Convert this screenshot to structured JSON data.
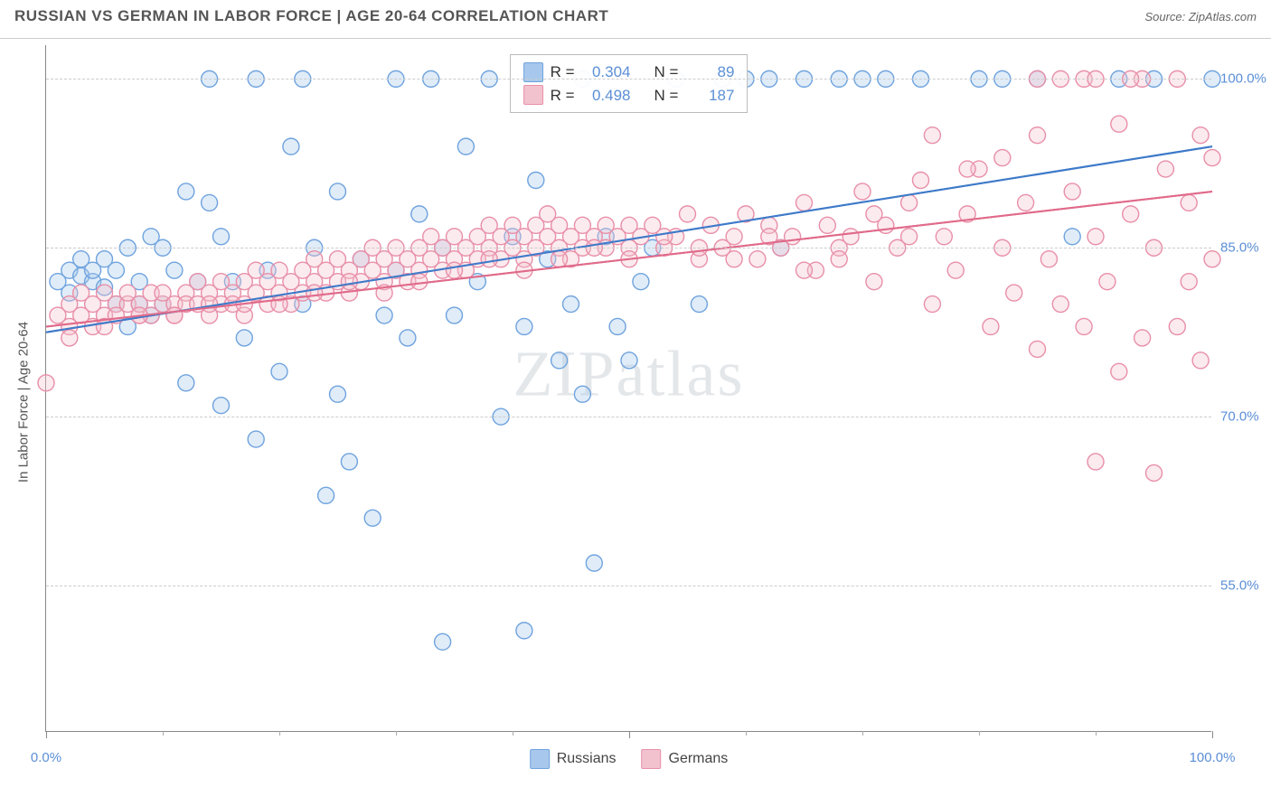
{
  "header": {
    "title": "RUSSIAN VS GERMAN IN LABOR FORCE | AGE 20-64 CORRELATION CHART",
    "source_prefix": "Source: ",
    "source": "ZipAtlas.com"
  },
  "chart": {
    "type": "scatter",
    "ylabel": "In Labor Force | Age 20-64",
    "watermark": "ZIPatlas",
    "background_color": "#ffffff",
    "grid_color": "#cccccc",
    "axis_color": "#888888",
    "label_color": "#5b8fd6",
    "xlim": [
      0,
      100
    ],
    "ylim": [
      42,
      103
    ],
    "x_ticks_major": [
      0,
      50,
      100
    ],
    "x_ticks_minor": [
      10,
      20,
      30,
      40,
      60,
      70,
      80,
      90
    ],
    "x_tick_labels": {
      "0": "0.0%",
      "100": "100.0%"
    },
    "y_gridlines": [
      55,
      70,
      85,
      100
    ],
    "y_tick_labels": {
      "55": "55.0%",
      "70": "70.0%",
      "85": "85.0%",
      "100": "100.0%"
    },
    "marker_radius": 9,
    "marker_fill_opacity": 0.35,
    "marker_stroke_width": 1.4,
    "line_width": 2,
    "series": [
      {
        "id": "russians",
        "name": "Russians",
        "color_fill": "#a7c8ec",
        "color_stroke": "#6fa3de",
        "line_color": "#3e7ac9",
        "stats": {
          "R": "0.304",
          "N": "89"
        },
        "trend": {
          "x1": 0,
          "y1": 77.5,
          "x2": 100,
          "y2": 94.0
        },
        "points": [
          [
            1,
            82
          ],
          [
            2,
            83
          ],
          [
            2,
            81
          ],
          [
            3,
            82.5
          ],
          [
            3,
            84
          ],
          [
            4,
            82
          ],
          [
            4,
            83
          ],
          [
            5,
            81.5
          ],
          [
            5,
            84
          ],
          [
            6,
            80
          ],
          [
            6,
            83
          ],
          [
            7,
            85
          ],
          [
            7,
            78
          ],
          [
            8,
            80
          ],
          [
            8,
            82
          ],
          [
            9,
            86
          ],
          [
            9,
            79
          ],
          [
            10,
            85
          ],
          [
            10,
            80
          ],
          [
            11,
            83
          ],
          [
            12,
            90
          ],
          [
            12,
            73
          ],
          [
            13,
            82
          ],
          [
            14,
            100
          ],
          [
            14,
            89
          ],
          [
            15,
            71
          ],
          [
            15,
            86
          ],
          [
            16,
            82
          ],
          [
            17,
            77
          ],
          [
            18,
            100
          ],
          [
            18,
            68
          ],
          [
            19,
            83
          ],
          [
            20,
            74
          ],
          [
            21,
            94
          ],
          [
            22,
            100
          ],
          [
            22,
            80
          ],
          [
            23,
            85
          ],
          [
            24,
            63
          ],
          [
            25,
            72
          ],
          [
            25,
            90
          ],
          [
            26,
            66
          ],
          [
            27,
            84
          ],
          [
            28,
            61
          ],
          [
            29,
            79
          ],
          [
            30,
            100
          ],
          [
            30,
            83
          ],
          [
            31,
            77
          ],
          [
            32,
            88
          ],
          [
            33,
            100
          ],
          [
            34,
            50
          ],
          [
            34,
            85
          ],
          [
            35,
            79
          ],
          [
            36,
            94
          ],
          [
            37,
            82
          ],
          [
            38,
            100
          ],
          [
            39,
            70
          ],
          [
            40,
            86
          ],
          [
            41,
            78
          ],
          [
            41,
            51
          ],
          [
            42,
            91
          ],
          [
            43,
            84
          ],
          [
            44,
            75
          ],
          [
            45,
            80
          ],
          [
            46,
            100
          ],
          [
            46,
            72
          ],
          [
            47,
            57
          ],
          [
            48,
            86
          ],
          [
            49,
            78
          ],
          [
            50,
            75
          ],
          [
            51,
            82
          ],
          [
            52,
            85
          ],
          [
            54,
            100
          ],
          [
            56,
            80
          ],
          [
            58,
            100
          ],
          [
            60,
            100
          ],
          [
            62,
            100
          ],
          [
            63,
            85
          ],
          [
            65,
            100
          ],
          [
            68,
            100
          ],
          [
            70,
            100
          ],
          [
            72,
            100
          ],
          [
            75,
            100
          ],
          [
            80,
            100
          ],
          [
            82,
            100
          ],
          [
            85,
            100
          ],
          [
            88,
            86
          ],
          [
            92,
            100
          ],
          [
            95,
            100
          ],
          [
            100,
            100
          ]
        ]
      },
      {
        "id": "germans",
        "name": "Germans",
        "color_fill": "#f3c2cf",
        "color_stroke": "#e88fa8",
        "line_color": "#e06a8a",
        "stats": {
          "R": "0.498",
          "N": "187"
        },
        "trend": {
          "x1": 0,
          "y1": 78.0,
          "x2": 100,
          "y2": 90.0
        },
        "points": [
          [
            1,
            79
          ],
          [
            2,
            78
          ],
          [
            2,
            80
          ],
          [
            3,
            79
          ],
          [
            3,
            81
          ],
          [
            4,
            80
          ],
          [
            4,
            78
          ],
          [
            5,
            79
          ],
          [
            5,
            81
          ],
          [
            6,
            80
          ],
          [
            6,
            79
          ],
          [
            7,
            80
          ],
          [
            7,
            81
          ],
          [
            8,
            79
          ],
          [
            8,
            80
          ],
          [
            9,
            81
          ],
          [
            9,
            79
          ],
          [
            10,
            80
          ],
          [
            10,
            81
          ],
          [
            11,
            80
          ],
          [
            11,
            79
          ],
          [
            12,
            81
          ],
          [
            12,
            80
          ],
          [
            13,
            80
          ],
          [
            13,
            82
          ],
          [
            14,
            81
          ],
          [
            14,
            79
          ],
          [
            15,
            80
          ],
          [
            15,
            82
          ],
          [
            16,
            81
          ],
          [
            16,
            80
          ],
          [
            17,
            82
          ],
          [
            17,
            79
          ],
          [
            18,
            81
          ],
          [
            18,
            83
          ],
          [
            19,
            80
          ],
          [
            19,
            82
          ],
          [
            20,
            81
          ],
          [
            20,
            83
          ],
          [
            21,
            82
          ],
          [
            21,
            80
          ],
          [
            22,
            83
          ],
          [
            22,
            81
          ],
          [
            23,
            82
          ],
          [
            23,
            84
          ],
          [
            24,
            81
          ],
          [
            24,
            83
          ],
          [
            25,
            82
          ],
          [
            25,
            84
          ],
          [
            26,
            83
          ],
          [
            26,
            81
          ],
          [
            27,
            84
          ],
          [
            27,
            82
          ],
          [
            28,
            83
          ],
          [
            28,
            85
          ],
          [
            29,
            82
          ],
          [
            29,
            84
          ],
          [
            30,
            83
          ],
          [
            30,
            85
          ],
          [
            31,
            84
          ],
          [
            31,
            82
          ],
          [
            32,
            85
          ],
          [
            32,
            83
          ],
          [
            33,
            84
          ],
          [
            33,
            86
          ],
          [
            34,
            83
          ],
          [
            34,
            85
          ],
          [
            35,
            84
          ],
          [
            35,
            86
          ],
          [
            36,
            85
          ],
          [
            36,
            83
          ],
          [
            37,
            86
          ],
          [
            37,
            84
          ],
          [
            38,
            85
          ],
          [
            38,
            87
          ],
          [
            39,
            84
          ],
          [
            39,
            86
          ],
          [
            40,
            85
          ],
          [
            40,
            87
          ],
          [
            41,
            86
          ],
          [
            41,
            84
          ],
          [
            42,
            87
          ],
          [
            42,
            85
          ],
          [
            43,
            86
          ],
          [
            43,
            88
          ],
          [
            44,
            85
          ],
          [
            44,
            87
          ],
          [
            45,
            86
          ],
          [
            45,
            84
          ],
          [
            46,
            87
          ],
          [
            46,
            85
          ],
          [
            47,
            86
          ],
          [
            48,
            87
          ],
          [
            48,
            85
          ],
          [
            49,
            86
          ],
          [
            50,
            87
          ],
          [
            50,
            85
          ],
          [
            51,
            86
          ],
          [
            52,
            87
          ],
          [
            53,
            85
          ],
          [
            54,
            86
          ],
          [
            55,
            88
          ],
          [
            56,
            84
          ],
          [
            57,
            87
          ],
          [
            58,
            85
          ],
          [
            59,
            86
          ],
          [
            60,
            88
          ],
          [
            61,
            84
          ],
          [
            62,
            87
          ],
          [
            63,
            85
          ],
          [
            64,
            86
          ],
          [
            65,
            89
          ],
          [
            66,
            83
          ],
          [
            67,
            87
          ],
          [
            68,
            85
          ],
          [
            69,
            86
          ],
          [
            70,
            90
          ],
          [
            71,
            82
          ],
          [
            72,
            87
          ],
          [
            73,
            85
          ],
          [
            74,
            89
          ],
          [
            75,
            91
          ],
          [
            76,
            80
          ],
          [
            77,
            86
          ],
          [
            78,
            83
          ],
          [
            79,
            88
          ],
          [
            80,
            92
          ],
          [
            81,
            78
          ],
          [
            82,
            85
          ],
          [
            83,
            81
          ],
          [
            84,
            89
          ],
          [
            85,
            95
          ],
          [
            85,
            76
          ],
          [
            86,
            84
          ],
          [
            87,
            80
          ],
          [
            88,
            90
          ],
          [
            89,
            100
          ],
          [
            89,
            78
          ],
          [
            90,
            86
          ],
          [
            90,
            66
          ],
          [
            91,
            82
          ],
          [
            92,
            96
          ],
          [
            92,
            74
          ],
          [
            93,
            88
          ],
          [
            94,
            100
          ],
          [
            94,
            77
          ],
          [
            95,
            85
          ],
          [
            95,
            65
          ],
          [
            96,
            92
          ],
          [
            97,
            100
          ],
          [
            97,
            78
          ],
          [
            98,
            89
          ],
          [
            98,
            82
          ],
          [
            99,
            95
          ],
          [
            99,
            75
          ],
          [
            100,
            93
          ],
          [
            100,
            84
          ],
          [
            85,
            100
          ],
          [
            87,
            100
          ],
          [
            90,
            100
          ],
          [
            93,
            100
          ],
          [
            76,
            95
          ],
          [
            79,
            92
          ],
          [
            82,
            93
          ],
          [
            74,
            86
          ],
          [
            71,
            88
          ],
          [
            68,
            84
          ],
          [
            65,
            83
          ],
          [
            62,
            86
          ],
          [
            59,
            84
          ],
          [
            56,
            85
          ],
          [
            53,
            86
          ],
          [
            50,
            84
          ],
          [
            47,
            85
          ],
          [
            44,
            84
          ],
          [
            41,
            83
          ],
          [
            38,
            84
          ],
          [
            35,
            83
          ],
          [
            32,
            82
          ],
          [
            29,
            81
          ],
          [
            26,
            82
          ],
          [
            23,
            81
          ],
          [
            20,
            80
          ],
          [
            17,
            80
          ],
          [
            14,
            80
          ],
          [
            11,
            79
          ],
          [
            8,
            79
          ],
          [
            5,
            78
          ],
          [
            2,
            77
          ],
          [
            0,
            73
          ]
        ]
      }
    ],
    "legend_stats": {
      "R_label": "R =",
      "N_label": "N ="
    },
    "bottom_legend_labels": [
      "Russians",
      "Germans"
    ]
  }
}
